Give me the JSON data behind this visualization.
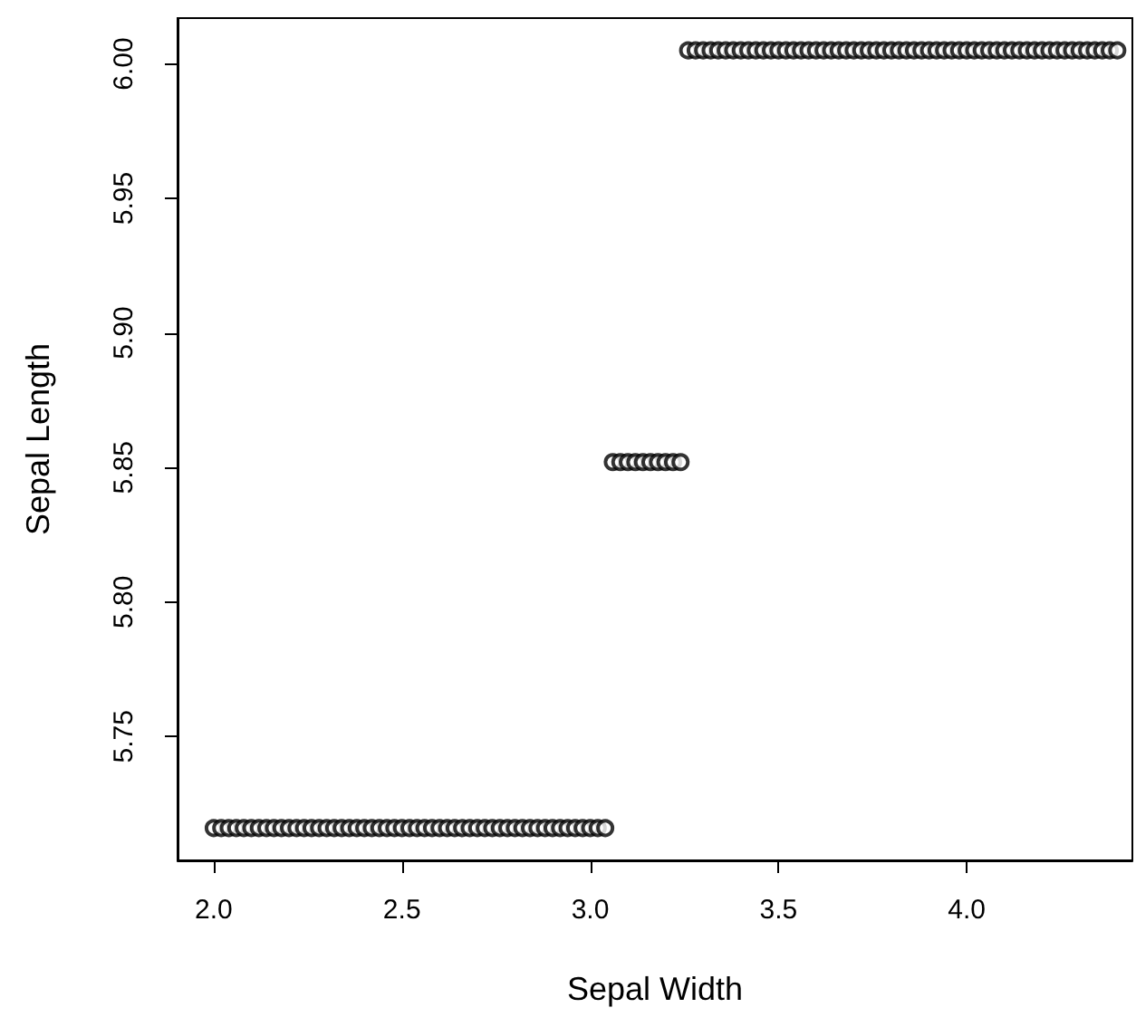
{
  "chart_data": {
    "type": "scatter",
    "xlabel": "Sepal Width",
    "ylabel": "Sepal Length",
    "xlim": [
      1.904,
      4.44
    ],
    "xticks": [
      {
        "value": 2.0,
        "label": "2.0"
      },
      2.5,
      {
        "value": 3.0,
        "label": "3.0"
      },
      3.5,
      {
        "value": 4.0,
        "label": "4.0"
      }
    ],
    "ylim": [
      5.704,
      6.017
    ],
    "yticks": [
      5.75,
      {
        "value": 5.8,
        "label": "5.80"
      },
      5.85,
      {
        "value": 5.9,
        "label": "5.90"
      },
      5.95,
      {
        "value": 6.0,
        "label": "6.00"
      }
    ],
    "grid": false,
    "marker": "circle",
    "series": [
      {
        "color": "#000000",
        "x": [
          2.0,
          2.02,
          2.04,
          2.06,
          2.08,
          2.1,
          2.12,
          2.14,
          2.16,
          2.18,
          2.2,
          2.22,
          2.24,
          2.26,
          2.28,
          2.3,
          2.32,
          2.34,
          2.36,
          2.38,
          2.4,
          2.42,
          2.44,
          2.46,
          2.48,
          2.5,
          2.52,
          2.54,
          2.56,
          2.58,
          2.6,
          2.62,
          2.64,
          2.66,
          2.68,
          2.7,
          2.72,
          2.74,
          2.76,
          2.78,
          2.8,
          2.82,
          2.84,
          2.86,
          2.88,
          2.9,
          2.92,
          2.94,
          2.96,
          2.98,
          3.0,
          3.02,
          3.04
        ],
        "values": [
          5.716,
          5.716,
          5.716,
          5.716,
          5.716,
          5.716,
          5.716,
          5.716,
          5.716,
          5.716,
          5.716,
          5.716,
          5.716,
          5.716,
          5.716,
          5.716,
          5.716,
          5.716,
          5.716,
          5.716,
          5.716,
          5.716,
          5.716,
          5.716,
          5.716,
          5.716,
          5.716,
          5.716,
          5.716,
          5.716,
          5.716,
          5.716,
          5.716,
          5.716,
          5.716,
          5.716,
          5.716,
          5.716,
          5.716,
          5.716,
          5.716,
          5.716,
          5.716,
          5.716,
          5.716,
          5.716,
          5.716,
          5.716,
          5.716,
          5.716,
          5.716,
          5.716,
          5.716
        ]
      },
      {
        "color": "#000000",
        "x": [
          3.06,
          3.08,
          3.1,
          3.12,
          3.14,
          3.16,
          3.18,
          3.2,
          3.22,
          3.24
        ],
        "values": [
          5.852,
          5.852,
          5.852,
          5.852,
          5.852,
          5.852,
          5.852,
          5.852,
          5.852,
          5.852
        ]
      },
      {
        "color": "#000000",
        "x": [
          3.26,
          3.28,
          3.3,
          3.32,
          3.34,
          3.36,
          3.38,
          3.4,
          3.42,
          3.44,
          3.46,
          3.48,
          3.5,
          3.52,
          3.54,
          3.56,
          3.58,
          3.6,
          3.62,
          3.64,
          3.66,
          3.68,
          3.7,
          3.72,
          3.74,
          3.76,
          3.78,
          3.8,
          3.82,
          3.84,
          3.86,
          3.88,
          3.9,
          3.92,
          3.94,
          3.96,
          3.98,
          4.0,
          4.02,
          4.04,
          4.06,
          4.08,
          4.1,
          4.12,
          4.14,
          4.16,
          4.18,
          4.2,
          4.22,
          4.24,
          4.26,
          4.28,
          4.3,
          4.32,
          4.34,
          4.36,
          4.38,
          4.4
        ],
        "values": [
          6.005,
          6.005,
          6.005,
          6.005,
          6.005,
          6.005,
          6.005,
          6.005,
          6.005,
          6.005,
          6.005,
          6.005,
          6.005,
          6.005,
          6.005,
          6.005,
          6.005,
          6.005,
          6.005,
          6.005,
          6.005,
          6.005,
          6.005,
          6.005,
          6.005,
          6.005,
          6.005,
          6.005,
          6.005,
          6.005,
          6.005,
          6.005,
          6.005,
          6.005,
          6.005,
          6.005,
          6.005,
          6.005,
          6.005,
          6.005,
          6.005,
          6.005,
          6.005,
          6.005,
          6.005,
          6.005,
          6.005,
          6.005,
          6.005,
          6.005,
          6.005,
          6.005,
          6.005,
          6.005,
          6.005,
          6.005,
          6.005,
          6.005
        ]
      }
    ]
  }
}
